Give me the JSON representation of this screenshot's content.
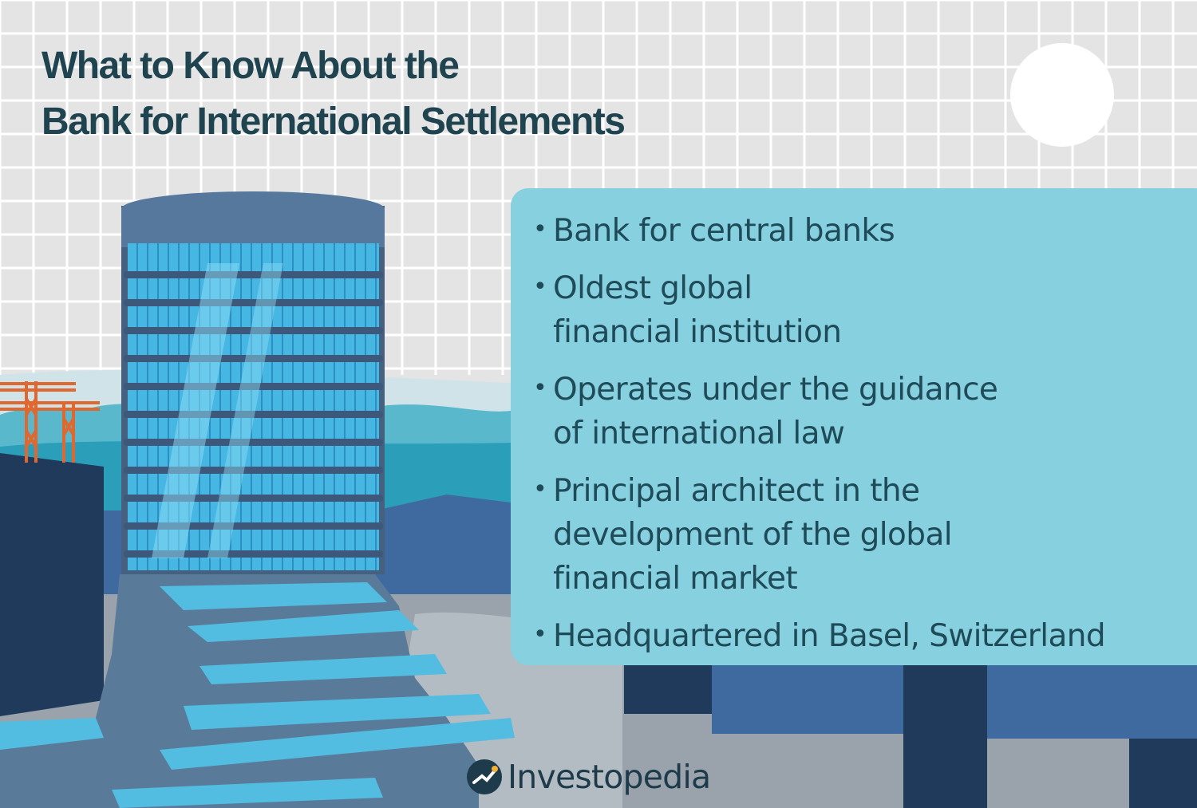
{
  "title": {
    "line1": "What to Know About the",
    "line2": "Bank for International Settlements"
  },
  "facts": [
    {
      "lines": [
        "Bank for central banks"
      ]
    },
    {
      "lines": [
        "Oldest global",
        "financial institution"
      ]
    },
    {
      "lines": [
        "Operates under the guidance",
        "of international law"
      ]
    },
    {
      "lines": [
        "Principal architect in the",
        "development of the global",
        "financial market"
      ]
    },
    {
      "lines": [
        "Headquartered in Basel, Switzerland"
      ]
    }
  ],
  "bullet": "•",
  "brand": {
    "name": "Investopedia",
    "logo_icon": "investopedia-logo-icon"
  },
  "illustration": {
    "subject": "bis-tower-illustration",
    "sun": "sun-icon",
    "cranes": "construction-crane-icon"
  },
  "colors": {
    "background": "#e4e4e4",
    "grid": "#ffffff",
    "title": "#1f4450",
    "card": "#87d0e0",
    "card_text": "#1f4a58",
    "navy": "#1f3a5a",
    "blue": "#3f6aa0",
    "teal": "#2a9cb8",
    "glass": "#46b6e3",
    "crane": "#e0672e",
    "brand_text": "#1d3b4a"
  }
}
